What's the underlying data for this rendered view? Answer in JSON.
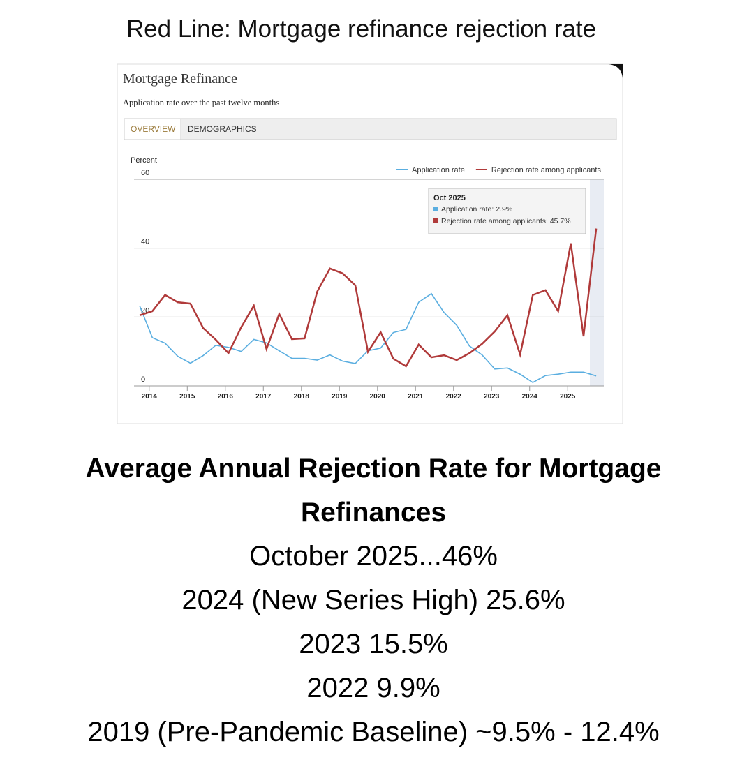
{
  "header": {
    "title": "Red Line: Mortgage refinance rejection rate"
  },
  "chart_data": {
    "type": "line",
    "title": "Mortgage Refinance",
    "subtitle": "Application rate over the past twelve months",
    "tabs": [
      "OVERVIEW",
      "DEMOGRAPHICS"
    ],
    "y_label": "Percent",
    "x": [
      2013.75,
      2014.083,
      2014.417,
      2014.75,
      2015.083,
      2015.417,
      2015.75,
      2016.083,
      2016.417,
      2016.75,
      2017.083,
      2017.417,
      2017.75,
      2018.083,
      2018.417,
      2018.75,
      2019.083,
      2019.417,
      2019.75,
      2020.083,
      2020.417,
      2020.75,
      2021.083,
      2021.417,
      2021.75,
      2022.083,
      2022.417,
      2022.75,
      2023.083,
      2023.417,
      2023.75,
      2024.083,
      2024.417,
      2024.75,
      2025.083,
      2025.417,
      2025.75
    ],
    "series": [
      {
        "name": "Application rate",
        "color": "#5aaee0",
        "values": [
          23.2,
          14,
          12.4,
          8.6,
          6.6,
          8.8,
          11.8,
          11.2,
          10,
          13.5,
          12.5,
          10.2,
          8,
          8,
          7.5,
          9,
          7.2,
          6.5,
          10.2,
          11,
          15.5,
          16.4,
          24.3,
          26.8,
          21.3,
          17.6,
          11.6,
          9,
          4.9,
          5.2,
          3.4,
          1,
          3,
          3.4,
          4,
          4,
          2.9
        ]
      },
      {
        "name": "Rejection rate among applicants",
        "color": "#b03a3a",
        "values": [
          20.5,
          21.7,
          26.4,
          24.3,
          23.9,
          16.8,
          13.4,
          9.5,
          17,
          23.3,
          10.7,
          20.9,
          13.6,
          13.8,
          27.4,
          34.1,
          32.7,
          29.2,
          9.9,
          15.6,
          7.9,
          5.7,
          12,
          8.3,
          8.9,
          7.5,
          9.5,
          12.2,
          15.8,
          20.5,
          9.1,
          26.4,
          27.8,
          21.7,
          41.4,
          14.4,
          45.7
        ]
      }
    ],
    "xlim": [
      2013.6,
      2025.95
    ],
    "xticks": [
      2014,
      2015,
      2016,
      2017,
      2018,
      2019,
      2020,
      2021,
      2022,
      2023,
      2024,
      2025
    ],
    "ylim": [
      0,
      60
    ],
    "yticks": [
      0,
      20,
      40,
      60
    ],
    "grid": true,
    "legend": "top-right",
    "tooltip": {
      "title": "Oct 2025",
      "lines": [
        "Application rate: 2.9%",
        "Rejection rate among applicants: 45.7%"
      ]
    }
  },
  "summary": {
    "heading": "Average Annual Rejection Rate for Mortgage Refinances",
    "lines": [
      "October 2025...46%",
      "2024 (New Series High) 25.6%",
      "2023 15.5%",
      "2022 9.9%",
      "2019 (Pre-Pandemic Baseline) ~9.5% - 12.4%"
    ]
  }
}
